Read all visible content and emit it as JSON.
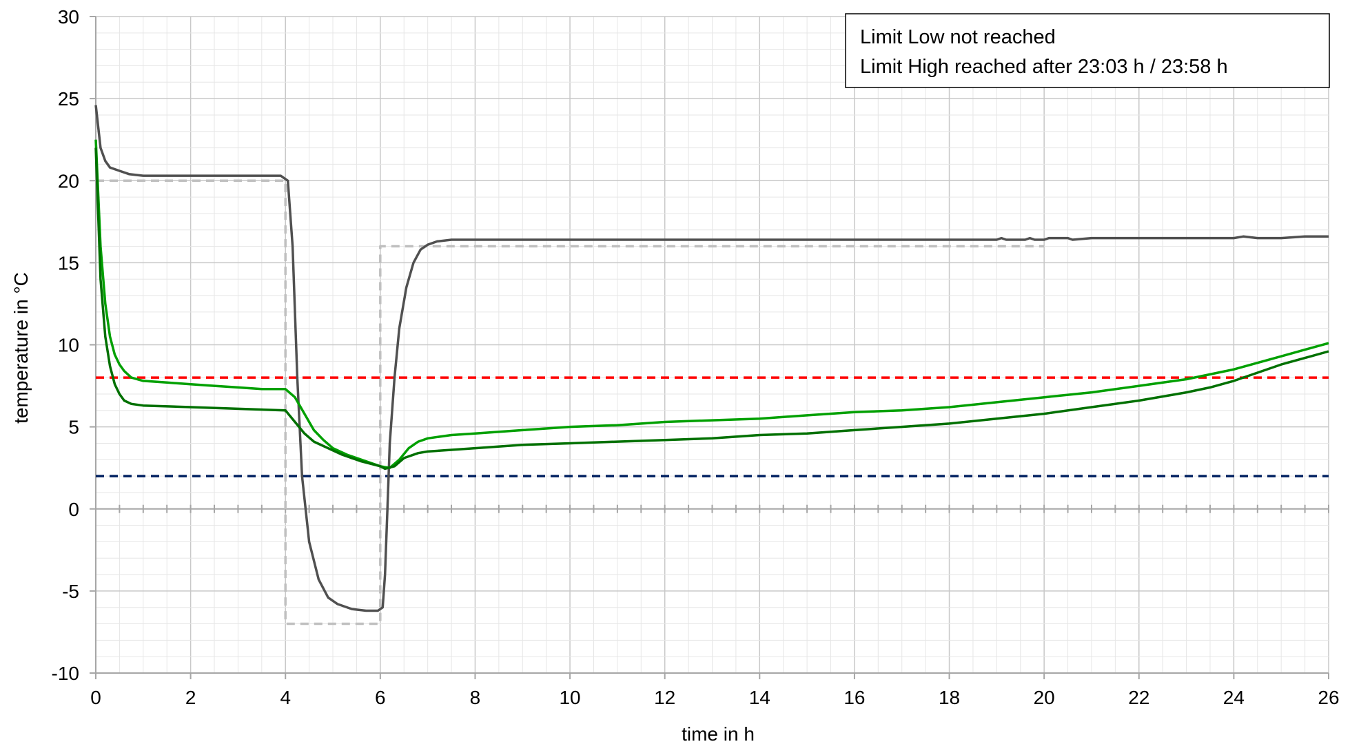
{
  "chart_data": {
    "type": "line",
    "title": "",
    "xlabel": "time in h",
    "ylabel": "temperature in °C",
    "xlim": [
      0,
      26
    ],
    "ylim": [
      -10,
      30
    ],
    "x_ticks": [
      0,
      2,
      4,
      6,
      8,
      10,
      12,
      14,
      16,
      18,
      20,
      22,
      24,
      26
    ],
    "y_ticks": [
      -10,
      -5,
      0,
      5,
      10,
      15,
      20,
      25,
      30
    ],
    "x_tick_labels": [
      "0",
      "2",
      "4",
      "6",
      "8",
      "10",
      "12",
      "14",
      "16",
      "18",
      "20",
      "22",
      "24",
      "26"
    ],
    "y_tick_labels": [
      "-10",
      "-5",
      "0",
      "5",
      "10",
      "15",
      "20",
      "25",
      "30"
    ],
    "grid": true,
    "annotation": {
      "lines": [
        "Limit Low not reached",
        "Limit High reached after 23:03 h / 23:58 h"
      ],
      "placement": "top-right"
    },
    "series": [
      {
        "color": "#c0c0c0",
        "style": "dashed",
        "points": [
          [
            0,
            20
          ],
          [
            4,
            20
          ],
          [
            4,
            -7
          ],
          [
            6,
            -7
          ],
          [
            6,
            16
          ],
          [
            20,
            16
          ]
        ]
      },
      {
        "color": "#ff0000",
        "style": "dashed",
        "points": [
          [
            0,
            8
          ],
          [
            26,
            8
          ]
        ]
      },
      {
        "color": "#002060",
        "style": "dashed",
        "points": [
          [
            0,
            2
          ],
          [
            26,
            2
          ]
        ]
      },
      {
        "color": "#505050",
        "style": "solid",
        "points": [
          [
            0,
            24.6
          ],
          [
            0.1,
            22
          ],
          [
            0.2,
            21.2
          ],
          [
            0.3,
            20.8
          ],
          [
            0.5,
            20.6
          ],
          [
            0.7,
            20.4
          ],
          [
            1,
            20.3
          ],
          [
            2,
            20.3
          ],
          [
            3,
            20.3
          ],
          [
            3.9,
            20.3
          ],
          [
            4.05,
            20
          ],
          [
            4.15,
            16
          ],
          [
            4.25,
            8
          ],
          [
            4.35,
            2
          ],
          [
            4.5,
            -2
          ],
          [
            4.7,
            -4.3
          ],
          [
            4.9,
            -5.4
          ],
          [
            5.1,
            -5.8
          ],
          [
            5.4,
            -6.1
          ],
          [
            5.7,
            -6.2
          ],
          [
            5.95,
            -6.2
          ],
          [
            6.05,
            -6
          ],
          [
            6.1,
            -4
          ],
          [
            6.15,
            0
          ],
          [
            6.2,
            4
          ],
          [
            6.3,
            8
          ],
          [
            6.4,
            11
          ],
          [
            6.55,
            13.5
          ],
          [
            6.7,
            15
          ],
          [
            6.85,
            15.8
          ],
          [
            7,
            16.1
          ],
          [
            7.2,
            16.3
          ],
          [
            7.5,
            16.4
          ],
          [
            10,
            16.4
          ],
          [
            15,
            16.4
          ],
          [
            19,
            16.4
          ],
          [
            19.1,
            16.5
          ],
          [
            19.2,
            16.4
          ],
          [
            19.6,
            16.4
          ],
          [
            19.7,
            16.5
          ],
          [
            19.8,
            16.4
          ],
          [
            20,
            16.4
          ],
          [
            20.1,
            16.5
          ],
          [
            20.5,
            16.5
          ],
          [
            20.6,
            16.4
          ],
          [
            21,
            16.5
          ],
          [
            21.5,
            16.5
          ],
          [
            22,
            16.5
          ],
          [
            24,
            16.5
          ],
          [
            24.2,
            16.6
          ],
          [
            24.5,
            16.5
          ],
          [
            25,
            16.5
          ],
          [
            25.5,
            16.6
          ],
          [
            26,
            16.6
          ]
        ]
      },
      {
        "color": "#00a000",
        "style": "solid",
        "points": [
          [
            0,
            22.5
          ],
          [
            0.1,
            16
          ],
          [
            0.2,
            12.5
          ],
          [
            0.3,
            10.5
          ],
          [
            0.4,
            9.4
          ],
          [
            0.5,
            8.8
          ],
          [
            0.6,
            8.4
          ],
          [
            0.75,
            8
          ],
          [
            1,
            7.8
          ],
          [
            1.5,
            7.7
          ],
          [
            2,
            7.6
          ],
          [
            2.5,
            7.5
          ],
          [
            3,
            7.4
          ],
          [
            3.5,
            7.3
          ],
          [
            4,
            7.3
          ],
          [
            4.2,
            6.8
          ],
          [
            4.4,
            5.8
          ],
          [
            4.6,
            4.8
          ],
          [
            4.8,
            4.2
          ],
          [
            5,
            3.7
          ],
          [
            5.3,
            3.3
          ],
          [
            5.7,
            2.9
          ],
          [
            6,
            2.6
          ],
          [
            6.2,
            2.5
          ],
          [
            6.4,
            3
          ],
          [
            6.6,
            3.7
          ],
          [
            6.8,
            4.1
          ],
          [
            7,
            4.3
          ],
          [
            7.5,
            4.5
          ],
          [
            8,
            4.6
          ],
          [
            9,
            4.8
          ],
          [
            10,
            5
          ],
          [
            11,
            5.1
          ],
          [
            12,
            5.3
          ],
          [
            13,
            5.4
          ],
          [
            14,
            5.5
          ],
          [
            15,
            5.7
          ],
          [
            16,
            5.9
          ],
          [
            17,
            6
          ],
          [
            18,
            6.2
          ],
          [
            19,
            6.5
          ],
          [
            20,
            6.8
          ],
          [
            21,
            7.1
          ],
          [
            22,
            7.5
          ],
          [
            23,
            7.9
          ],
          [
            23.5,
            8.2
          ],
          [
            24,
            8.5
          ],
          [
            24.5,
            8.9
          ],
          [
            25,
            9.3
          ],
          [
            25.5,
            9.7
          ],
          [
            26,
            10.1
          ]
        ]
      },
      {
        "color": "#007000",
        "style": "solid",
        "points": [
          [
            0,
            22
          ],
          [
            0.1,
            14
          ],
          [
            0.2,
            10.5
          ],
          [
            0.3,
            8.7
          ],
          [
            0.4,
            7.6
          ],
          [
            0.5,
            7
          ],
          [
            0.6,
            6.6
          ],
          [
            0.75,
            6.4
          ],
          [
            1,
            6.3
          ],
          [
            2,
            6.2
          ],
          [
            3,
            6.1
          ],
          [
            4,
            6
          ],
          [
            4.2,
            5.3
          ],
          [
            4.4,
            4.6
          ],
          [
            4.6,
            4.1
          ],
          [
            4.9,
            3.7
          ],
          [
            5.2,
            3.3
          ],
          [
            5.6,
            2.9
          ],
          [
            6,
            2.6
          ],
          [
            6.1,
            2.45
          ],
          [
            6.3,
            2.6
          ],
          [
            6.5,
            3.1
          ],
          [
            6.8,
            3.4
          ],
          [
            7,
            3.5
          ],
          [
            7.5,
            3.6
          ],
          [
            8,
            3.7
          ],
          [
            9,
            3.9
          ],
          [
            10,
            4
          ],
          [
            11,
            4.1
          ],
          [
            12,
            4.2
          ],
          [
            13,
            4.3
          ],
          [
            14,
            4.5
          ],
          [
            15,
            4.6
          ],
          [
            16,
            4.8
          ],
          [
            17,
            5
          ],
          [
            18,
            5.2
          ],
          [
            19,
            5.5
          ],
          [
            20,
            5.8
          ],
          [
            21,
            6.2
          ],
          [
            22,
            6.6
          ],
          [
            23,
            7.1
          ],
          [
            23.5,
            7.4
          ],
          [
            24,
            7.8
          ],
          [
            24.5,
            8.3
          ],
          [
            25,
            8.8
          ],
          [
            25.5,
            9.2
          ],
          [
            26,
            9.6
          ]
        ]
      }
    ]
  }
}
